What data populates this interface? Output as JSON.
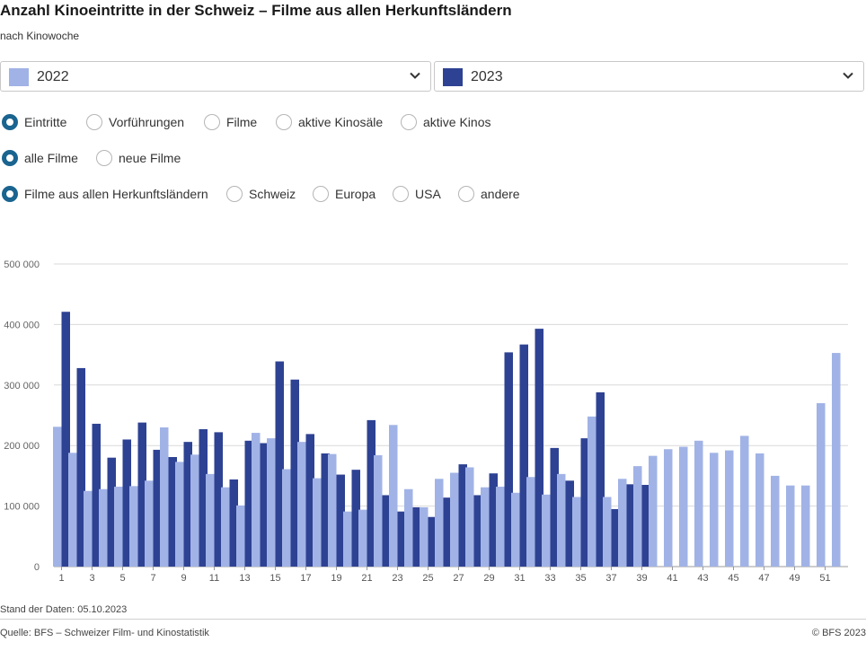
{
  "header": {
    "title": "Anzahl Kinoeintritte in der Schweiz – Filme aus allen Herkunftsländern",
    "subtitle": "nach Kinowoche"
  },
  "selectors": [
    {
      "label": "2022",
      "color": "#a1b3e6",
      "icon": "chevron-down-icon"
    },
    {
      "label": "2023",
      "color": "#2e4293",
      "icon": "chevron-down-icon"
    }
  ],
  "radio_groups": [
    {
      "options": [
        "Eintritte",
        "Vorführungen",
        "Filme",
        "aktive Kinosäle",
        "aktive Kinos"
      ],
      "selected": 0
    },
    {
      "options": [
        "alle Filme",
        "neue Filme"
      ],
      "selected": 0
    },
    {
      "options": [
        "Filme aus allen Herkunftsländern",
        "Schweiz",
        "Europa",
        "USA",
        "andere"
      ],
      "selected": 0
    }
  ],
  "chart_data": {
    "type": "bar",
    "ylim": [
      0,
      500000
    ],
    "yticks": [
      0,
      100000,
      200000,
      300000,
      400000,
      500000
    ],
    "ytick_labels": [
      "0",
      "100 000",
      "200 000",
      "300 000",
      "400 000",
      "500 000"
    ],
    "xtick_labels": [
      "1",
      "3",
      "5",
      "7",
      "9",
      "11",
      "13",
      "15",
      "17",
      "19",
      "21",
      "23",
      "25",
      "27",
      "29",
      "31",
      "33",
      "35",
      "37",
      "39",
      "41",
      "43",
      "45",
      "47",
      "49",
      "51"
    ],
    "grid": true,
    "categories": [
      1,
      2,
      3,
      4,
      5,
      6,
      7,
      8,
      9,
      10,
      11,
      12,
      13,
      14,
      15,
      16,
      17,
      18,
      19,
      20,
      21,
      22,
      23,
      24,
      25,
      26,
      27,
      28,
      29,
      30,
      31,
      32,
      33,
      34,
      35,
      36,
      37,
      38,
      39,
      40,
      41,
      42,
      43,
      44,
      45,
      46,
      47,
      48,
      49,
      50,
      51,
      52
    ],
    "series": [
      {
        "name": "2022",
        "color": "#a1b3e6",
        "values": [
          231000,
          188000,
          125000,
          128000,
          132000,
          133000,
          142000,
          230000,
          173000,
          185000,
          153000,
          131000,
          101000,
          221000,
          212000,
          161000,
          206000,
          146000,
          186000,
          91000,
          94000,
          184000,
          234000,
          128000,
          98000,
          145000,
          155000,
          164000,
          131000,
          132000,
          122000,
          148000,
          119000,
          153000,
          115000,
          248000,
          115000,
          145000,
          166000,
          183000,
          194000,
          198000,
          208000,
          188000,
          192000,
          216000,
          187000,
          150000,
          134000,
          134000,
          270000,
          353000
        ]
      },
      {
        "name": "2023",
        "color": "#2e4293",
        "values": [
          421000,
          328000,
          236000,
          180000,
          210000,
          238000,
          193000,
          181000,
          206000,
          227000,
          222000,
          144000,
          208000,
          204000,
          339000,
          309000,
          219000,
          187000,
          152000,
          160000,
          242000,
          118000,
          91000,
          98000,
          82000,
          114000,
          169000,
          118000,
          154000,
          354000,
          367000,
          393000,
          196000,
          142000,
          212000,
          288000,
          95000,
          136000,
          135000,
          null,
          null,
          null,
          null,
          null,
          null,
          null,
          null,
          null,
          null,
          null,
          null,
          null
        ]
      }
    ]
  },
  "footer": {
    "date": "Stand der Daten: 05.10.2023",
    "source": "Quelle: BFS – Schweizer Film- und Kinostatistik",
    "copyright": "© BFS 2023"
  }
}
